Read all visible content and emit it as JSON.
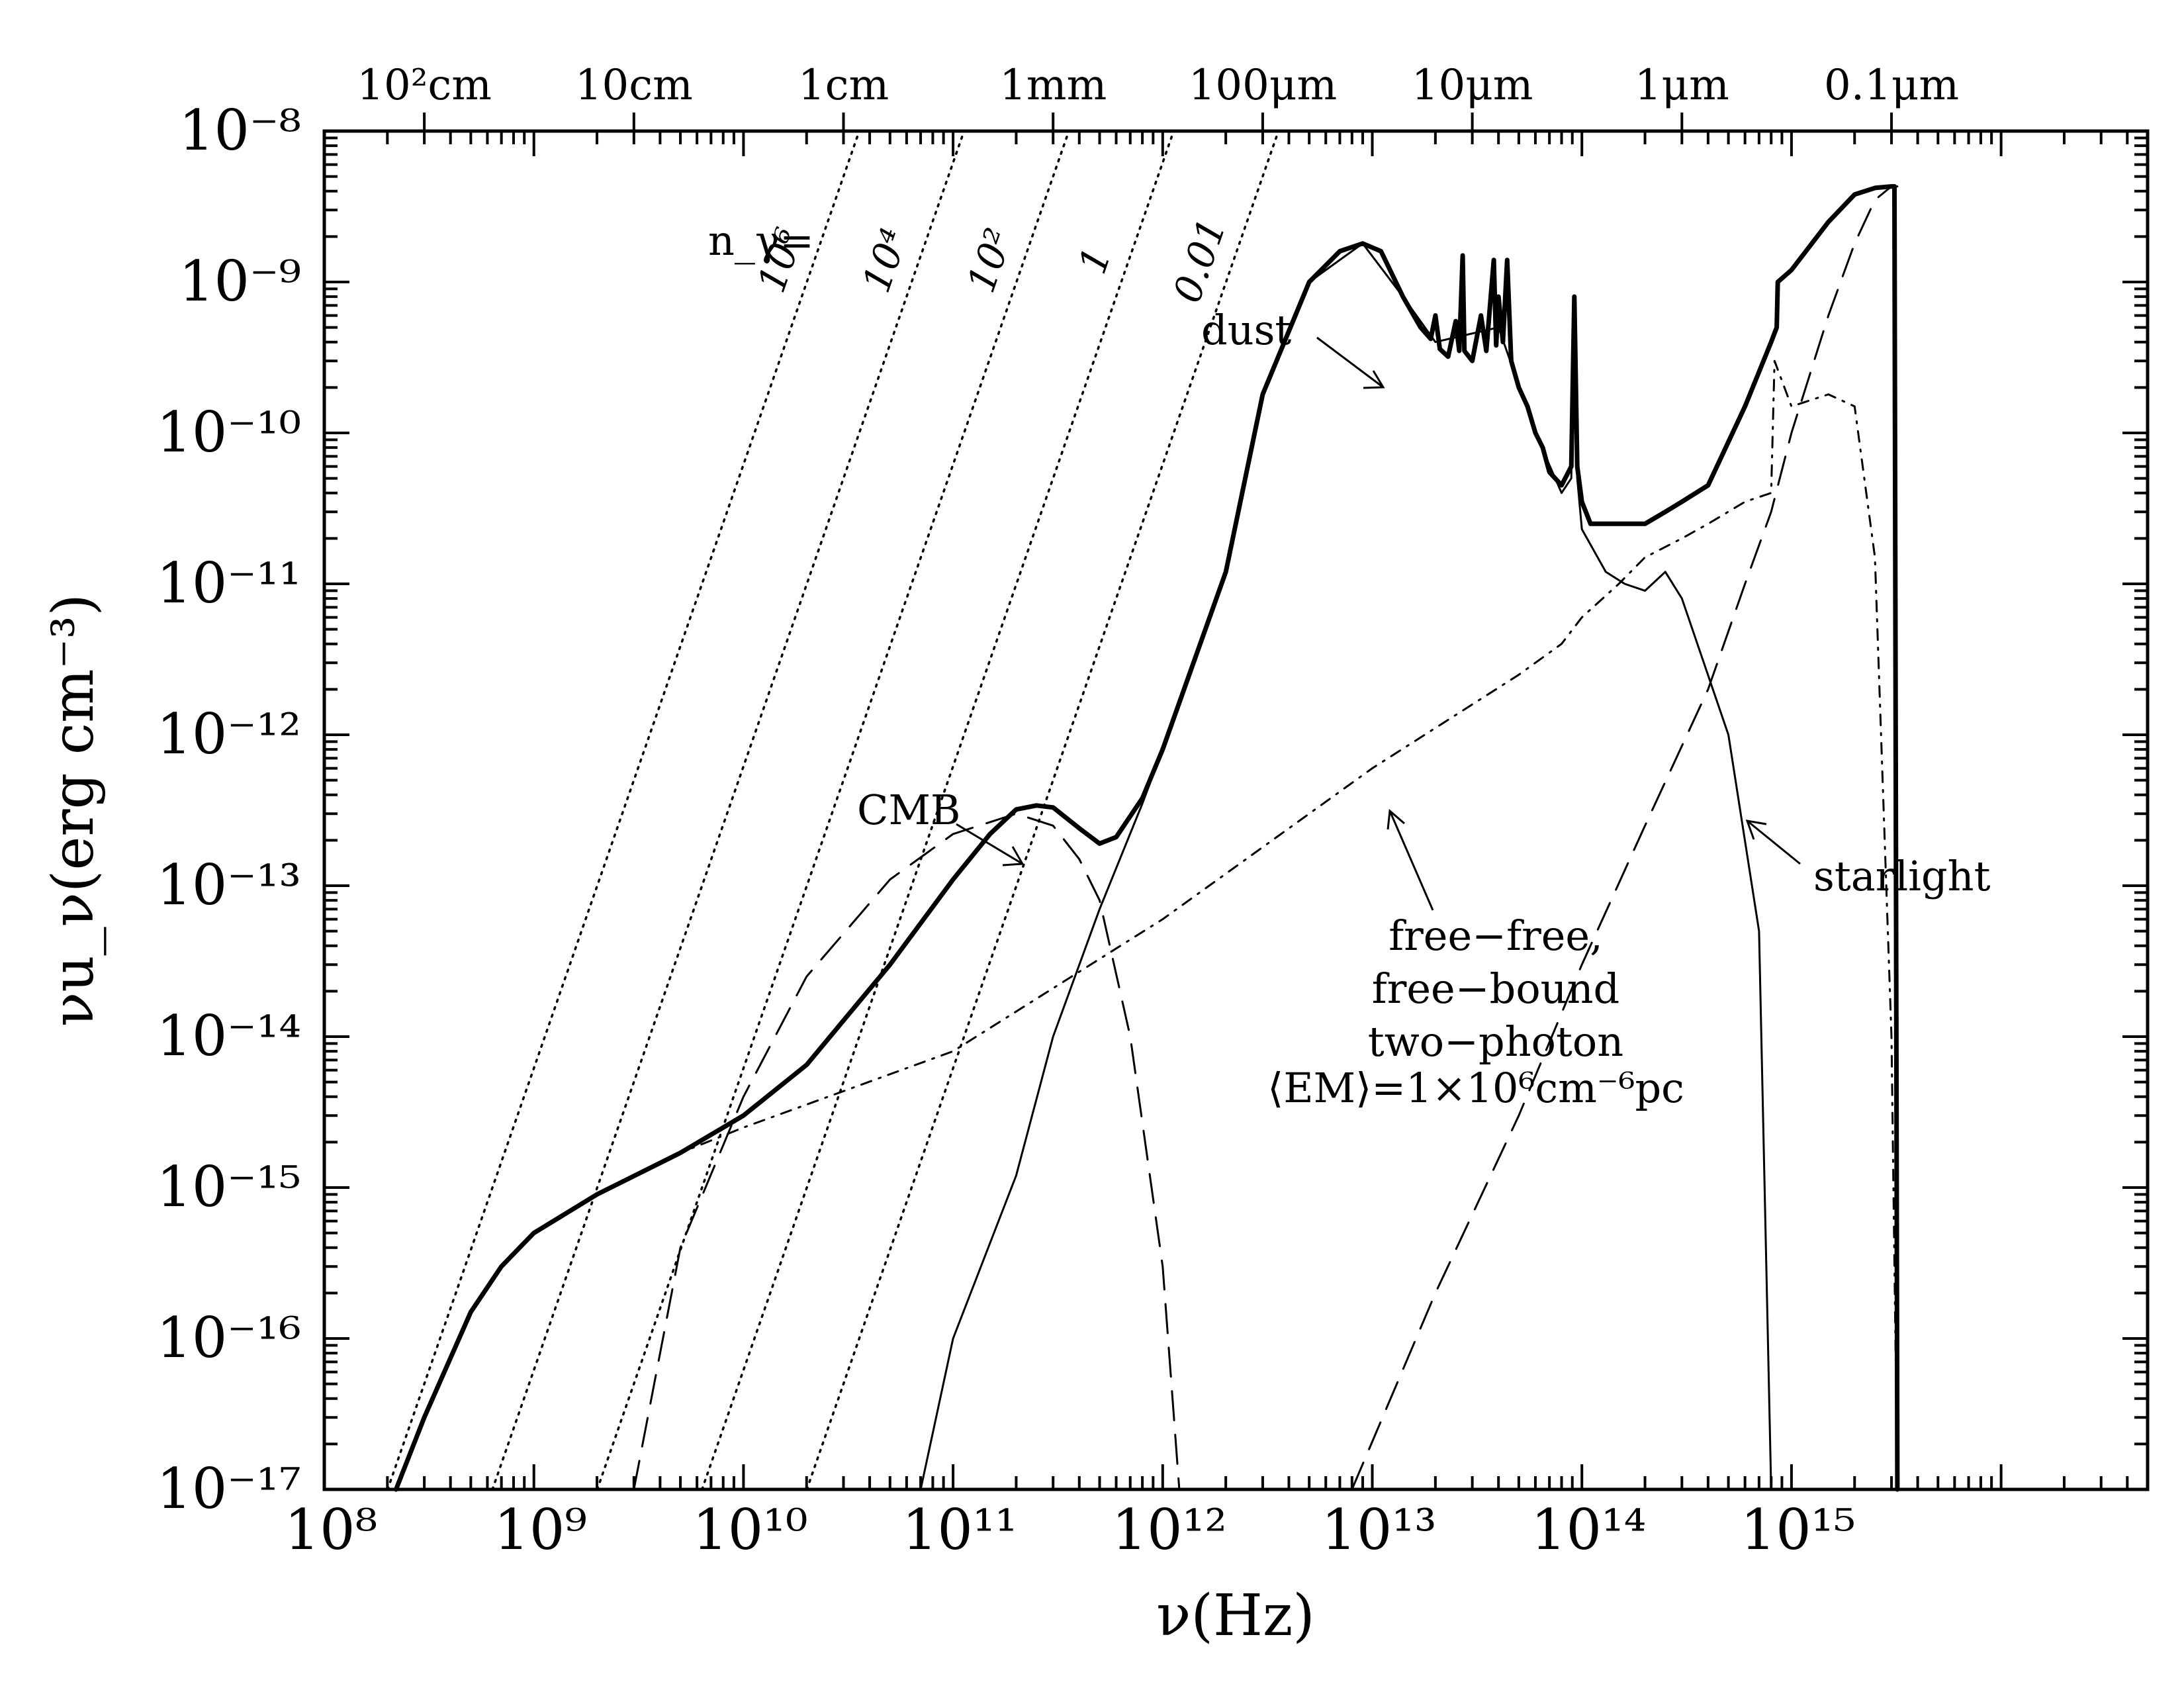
{
  "chart_data": {
    "type": "line",
    "xscale": "log",
    "yscale": "log",
    "xlim": [
      100000000,
      50000000000000000
    ],
    "ylim": [
      1e-17,
      1e-08
    ],
    "xlabel": "ν(Hz)",
    "ylabel": "νu_ν(erg cm⁻³)",
    "x_tick_labels": [
      {
        "exp": 8,
        "text": "10⁸"
      },
      {
        "exp": 9,
        "text": "10⁹"
      },
      {
        "exp": 10,
        "text": "10¹⁰"
      },
      {
        "exp": 11,
        "text": "10¹¹"
      },
      {
        "exp": 12,
        "text": "10¹²"
      },
      {
        "exp": 13,
        "text": "10¹³"
      },
      {
        "exp": 14,
        "text": "10¹⁴"
      },
      {
        "exp": 15,
        "text": "10¹⁵"
      }
    ],
    "y_tick_labels": [
      {
        "exp": -8,
        "text": "10⁻⁸"
      },
      {
        "exp": -9,
        "text": "10⁻⁹"
      },
      {
        "exp": -10,
        "text": "10⁻¹⁰"
      },
      {
        "exp": -11,
        "text": "10⁻¹¹"
      },
      {
        "exp": -12,
        "text": "10⁻¹²"
      },
      {
        "exp": -13,
        "text": "10⁻¹³"
      },
      {
        "exp": -14,
        "text": "10⁻¹⁴"
      },
      {
        "exp": -15,
        "text": "10⁻¹⁵"
      },
      {
        "exp": -16,
        "text": "10⁻¹⁶"
      },
      {
        "exp": -17,
        "text": "10⁻¹⁷"
      }
    ],
    "top_axis": [
      {
        "label": "10²cm",
        "nu": 300000000
      },
      {
        "label": "10cm",
        "nu": 3000000000
      },
      {
        "label": "1cm",
        "nu": 30000000000
      },
      {
        "label": "1mm",
        "nu": 300000000000
      },
      {
        "label": "100μm",
        "nu": 3000000000000
      },
      {
        "label": "10μm",
        "nu": 30000000000000
      },
      {
        "label": "1μm",
        "nu": 300000000000000
      },
      {
        "label": "0.1μm",
        "nu": 3000000000000000
      }
    ],
    "photon_occupation": {
      "prefix": "n_γ=",
      "lines": [
        {
          "label": "10⁶",
          "n": 1000000
        },
        {
          "label": "10⁴",
          "n": 10000
        },
        {
          "label": "10²",
          "n": 100
        },
        {
          "label": "1",
          "n": 1
        },
        {
          "label": "0.01",
          "n": 0.01
        }
      ]
    },
    "series": [
      {
        "style": "thick-solid",
        "points": [
          [
            220000000.0,
            1e-17
          ],
          [
            300000000.0,
            3e-17
          ],
          [
            500000000.0,
            1.5e-16
          ],
          [
            700000000.0,
            3e-16
          ],
          [
            1000000000.0,
            5e-16
          ],
          [
            2000000000.0,
            9e-16
          ],
          [
            5000000000.0,
            1.7e-15
          ],
          [
            10000000000.0,
            3e-15
          ],
          [
            20000000000.0,
            6.5e-15
          ],
          [
            50000000000.0,
            3e-14
          ],
          [
            100000000000.0,
            1.1e-13
          ],
          [
            150000000000.0,
            2.2e-13
          ],
          [
            200000000000.0,
            3.2e-13
          ],
          [
            250000000000.0,
            3.4e-13
          ],
          [
            300000000000.0,
            3.3e-13
          ],
          [
            400000000000.0,
            2.4e-13
          ],
          [
            500000000000.0,
            1.9e-13
          ],
          [
            600000000000.0,
            2.1e-13
          ],
          [
            800000000000.0,
            3.8e-13
          ],
          [
            1000000000000.0,
            8e-13
          ],
          [
            2000000000000.0,
            1.2e-11
          ],
          [
            3000000000000.0,
            1.8e-10
          ],
          [
            5000000000000.0,
            1e-09
          ],
          [
            7000000000000.0,
            1.6e-09
          ],
          [
            9000000000000.0,
            1.8e-09
          ],
          [
            11000000000000.0,
            1.6e-09
          ],
          [
            14000000000000.0,
            8e-10
          ],
          [
            17000000000000.0,
            5e-10
          ],
          [
            19000000000000.0,
            4.2e-10
          ],
          [
            20000000000000.0,
            6e-10
          ],
          [
            21000000000000.0,
            3.6e-10
          ],
          [
            23000000000000.0,
            3.2e-10
          ],
          [
            25000000000000.0,
            5.5e-10
          ],
          [
            26000000000000.0,
            3.5e-10
          ],
          [
            27000000000000.0,
            1.5e-09
          ],
          [
            27500000000000.0,
            3.5e-10
          ],
          [
            30000000000000.0,
            3e-10
          ],
          [
            33000000000000.0,
            6e-10
          ],
          [
            35000000000000.0,
            3.5e-10
          ],
          [
            38000000000000.0,
            1.4e-09
          ],
          [
            39000000000000.0,
            3.8e-10
          ],
          [
            40000000000000.0,
            8e-10
          ],
          [
            42000000000000.0,
            4e-10
          ],
          [
            44000000000000.0,
            1.4e-09
          ],
          [
            46000000000000.0,
            3e-10
          ],
          [
            50000000000000.0,
            2e-10
          ],
          [
            55000000000000.0,
            1.5e-10
          ],
          [
            60000000000000.0,
            1e-10
          ],
          [
            65000000000000.0,
            8e-11
          ],
          [
            70000000000000.0,
            5.5e-11
          ],
          [
            80000000000000.0,
            4.5e-11
          ],
          [
            89000000000000.0,
            6e-11
          ],
          [
            92000000000000.0,
            8e-10
          ],
          [
            95000000000000.0,
            6e-11
          ],
          [
            100000000000000.0,
            3.5e-11
          ],
          [
            110000000000000.0,
            2.5e-11
          ],
          [
            140000000000000.0,
            2.5e-11
          ],
          [
            160000000000000.0,
            2.5e-11
          ],
          [
            200000000000000.0,
            2.5e-11
          ],
          [
            250000000000000.0,
            3e-11
          ],
          [
            300000000000000.0,
            3.5e-11
          ],
          [
            400000000000000.0,
            4.5e-11
          ],
          [
            600000000000000.0,
            1.5e-10
          ],
          [
            800000000000000.0,
            4e-10
          ],
          [
            850000000000000.0,
            5e-10
          ],
          [
            860000000000000.0,
            1e-09
          ],
          [
            1000000000000000.0,
            1.2e-09
          ],
          [
            1500000000000000.0,
            2.5e-09
          ],
          [
            2000000000000000.0,
            3.8e-09
          ],
          [
            2500000000000000.0,
            4.2e-09
          ],
          [
            3000000000000000.0,
            4.3e-09
          ],
          [
            3100000000000000.0,
            4.3e-09
          ],
          [
            3200000000000000.0,
            1e-17
          ]
        ]
      },
      {
        "style": "thin-solid",
        "points": [
          [
            70000000000.0,
            1e-17
          ],
          [
            100000000000.0,
            1e-16
          ],
          [
            200000000000.0,
            1.2e-15
          ],
          [
            300000000000.0,
            1e-14
          ],
          [
            500000000000.0,
            7e-14
          ],
          [
            800000000000.0,
            3.5e-13
          ],
          [
            1000000000000.0,
            8e-13
          ],
          [
            2000000000000.0,
            1.2e-11
          ],
          [
            3000000000000.0,
            1.8e-10
          ],
          [
            5000000000000.0,
            1e-09
          ],
          [
            9000000000000.0,
            1.8e-09
          ],
          [
            14000000000000.0,
            8e-10
          ],
          [
            20000000000000.0,
            4e-10
          ],
          [
            40000000000000.0,
            5e-10
          ],
          [
            60000000000000.0,
            1e-10
          ],
          [
            80000000000000.0,
            4e-11
          ],
          [
            89000000000000.0,
            5e-11
          ],
          [
            92000000000000.0,
            8e-10
          ],
          [
            95000000000000.0,
            5e-11
          ],
          [
            100000000000000.0,
            2.3e-11
          ],
          [
            130000000000000.0,
            1.2e-11
          ],
          [
            160000000000000.0,
            1e-11
          ],
          [
            200000000000000.0,
            9e-12
          ],
          [
            250000000000000.0,
            1.2e-11
          ],
          [
            300000000000000.0,
            8e-12
          ],
          [
            500000000000000.0,
            1e-12
          ],
          [
            700000000000000.0,
            5e-14
          ],
          [
            800000000000000.0,
            1e-17
          ]
        ]
      },
      {
        "style": "long-dash",
        "points": [
          [
            3000000000.0,
            1e-17
          ],
          [
            5000000000.0,
            4e-16
          ],
          [
            10000000000.0,
            4e-15
          ],
          [
            20000000000.0,
            2.5e-14
          ],
          [
            50000000000.0,
            1.1e-13
          ],
          [
            100000000000.0,
            2.2e-13
          ],
          [
            200000000000.0,
            3e-13
          ],
          [
            300000000000.0,
            2.5e-13
          ],
          [
            400000000000.0,
            1.5e-13
          ],
          [
            500000000000.0,
            8e-14
          ],
          [
            700000000000.0,
            1e-14
          ],
          [
            1000000000000.0,
            3e-16
          ],
          [
            1200000000000.0,
            1e-17
          ]
        ]
      },
      {
        "style": "long-dash",
        "points": [
          [
            8000000000000.0,
            1e-17
          ],
          [
            20000000000000.0,
            2e-16
          ],
          [
            50000000000000.0,
            3e-15
          ],
          [
            100000000000000.0,
            3e-14
          ],
          [
            200000000000000.0,
            2.5e-13
          ],
          [
            400000000000000.0,
            2e-12
          ],
          [
            600000000000000.0,
            1e-11
          ],
          [
            800000000000000.0,
            3e-11
          ],
          [
            1000000000000000.0,
            1e-10
          ],
          [
            1500000000000000.0,
            6e-10
          ],
          [
            2000000000000000.0,
            1.8e-09
          ],
          [
            2500000000000000.0,
            3.5e-09
          ],
          [
            3000000000000000.0,
            4.3e-09
          ],
          [
            3200000000000000.0,
            4.3e-09
          ]
        ]
      },
      {
        "style": "dash-dot",
        "points": [
          [
            220000000.0,
            1e-17
          ],
          [
            300000000.0,
            3e-17
          ],
          [
            500000000.0,
            1.5e-16
          ],
          [
            700000000.0,
            3e-16
          ],
          [
            1000000000.0,
            5e-16
          ],
          [
            2000000000.0,
            9e-16
          ],
          [
            5000000000.0,
            1.7e-15
          ],
          [
            10000000000.0,
            2.5e-15
          ],
          [
            100000000000.0,
            8e-15
          ],
          [
            1000000000000.0,
            6e-14
          ],
          [
            10000000000000.0,
            6e-13
          ],
          [
            50000000000000.0,
            2.5e-12
          ],
          [
            80000000000000.0,
            4e-12
          ],
          [
            100000000000000.0,
            6e-12
          ],
          [
            150000000000000.0,
            1e-11
          ],
          [
            200000000000000.0,
            1.5e-11
          ],
          [
            300000000000000.0,
            2e-11
          ],
          [
            400000000000000.0,
            2.5e-11
          ],
          [
            600000000000000.0,
            3.5e-11
          ],
          [
            800000000000000.0,
            4e-11
          ],
          [
            830000000000000.0,
            3e-10
          ],
          [
            1000000000000000.0,
            1.5e-10
          ],
          [
            1500000000000000.0,
            1.8e-10
          ],
          [
            2000000000000000.0,
            1.5e-10
          ],
          [
            2500000000000000.0,
            1.5e-11
          ],
          [
            3000000000000000.0,
            1e-14
          ],
          [
            3200000000000000.0,
            1e-17
          ]
        ]
      }
    ],
    "annotations": [
      {
        "text": "dust"
      },
      {
        "text": "CMB"
      },
      {
        "text": "starlight"
      },
      {
        "text": "free−free,"
      },
      {
        "text": "free−bound"
      },
      {
        "text": "two−photon"
      },
      {
        "text": "⟨EM⟩=1×10⁶cm⁻⁶pc"
      }
    ]
  }
}
